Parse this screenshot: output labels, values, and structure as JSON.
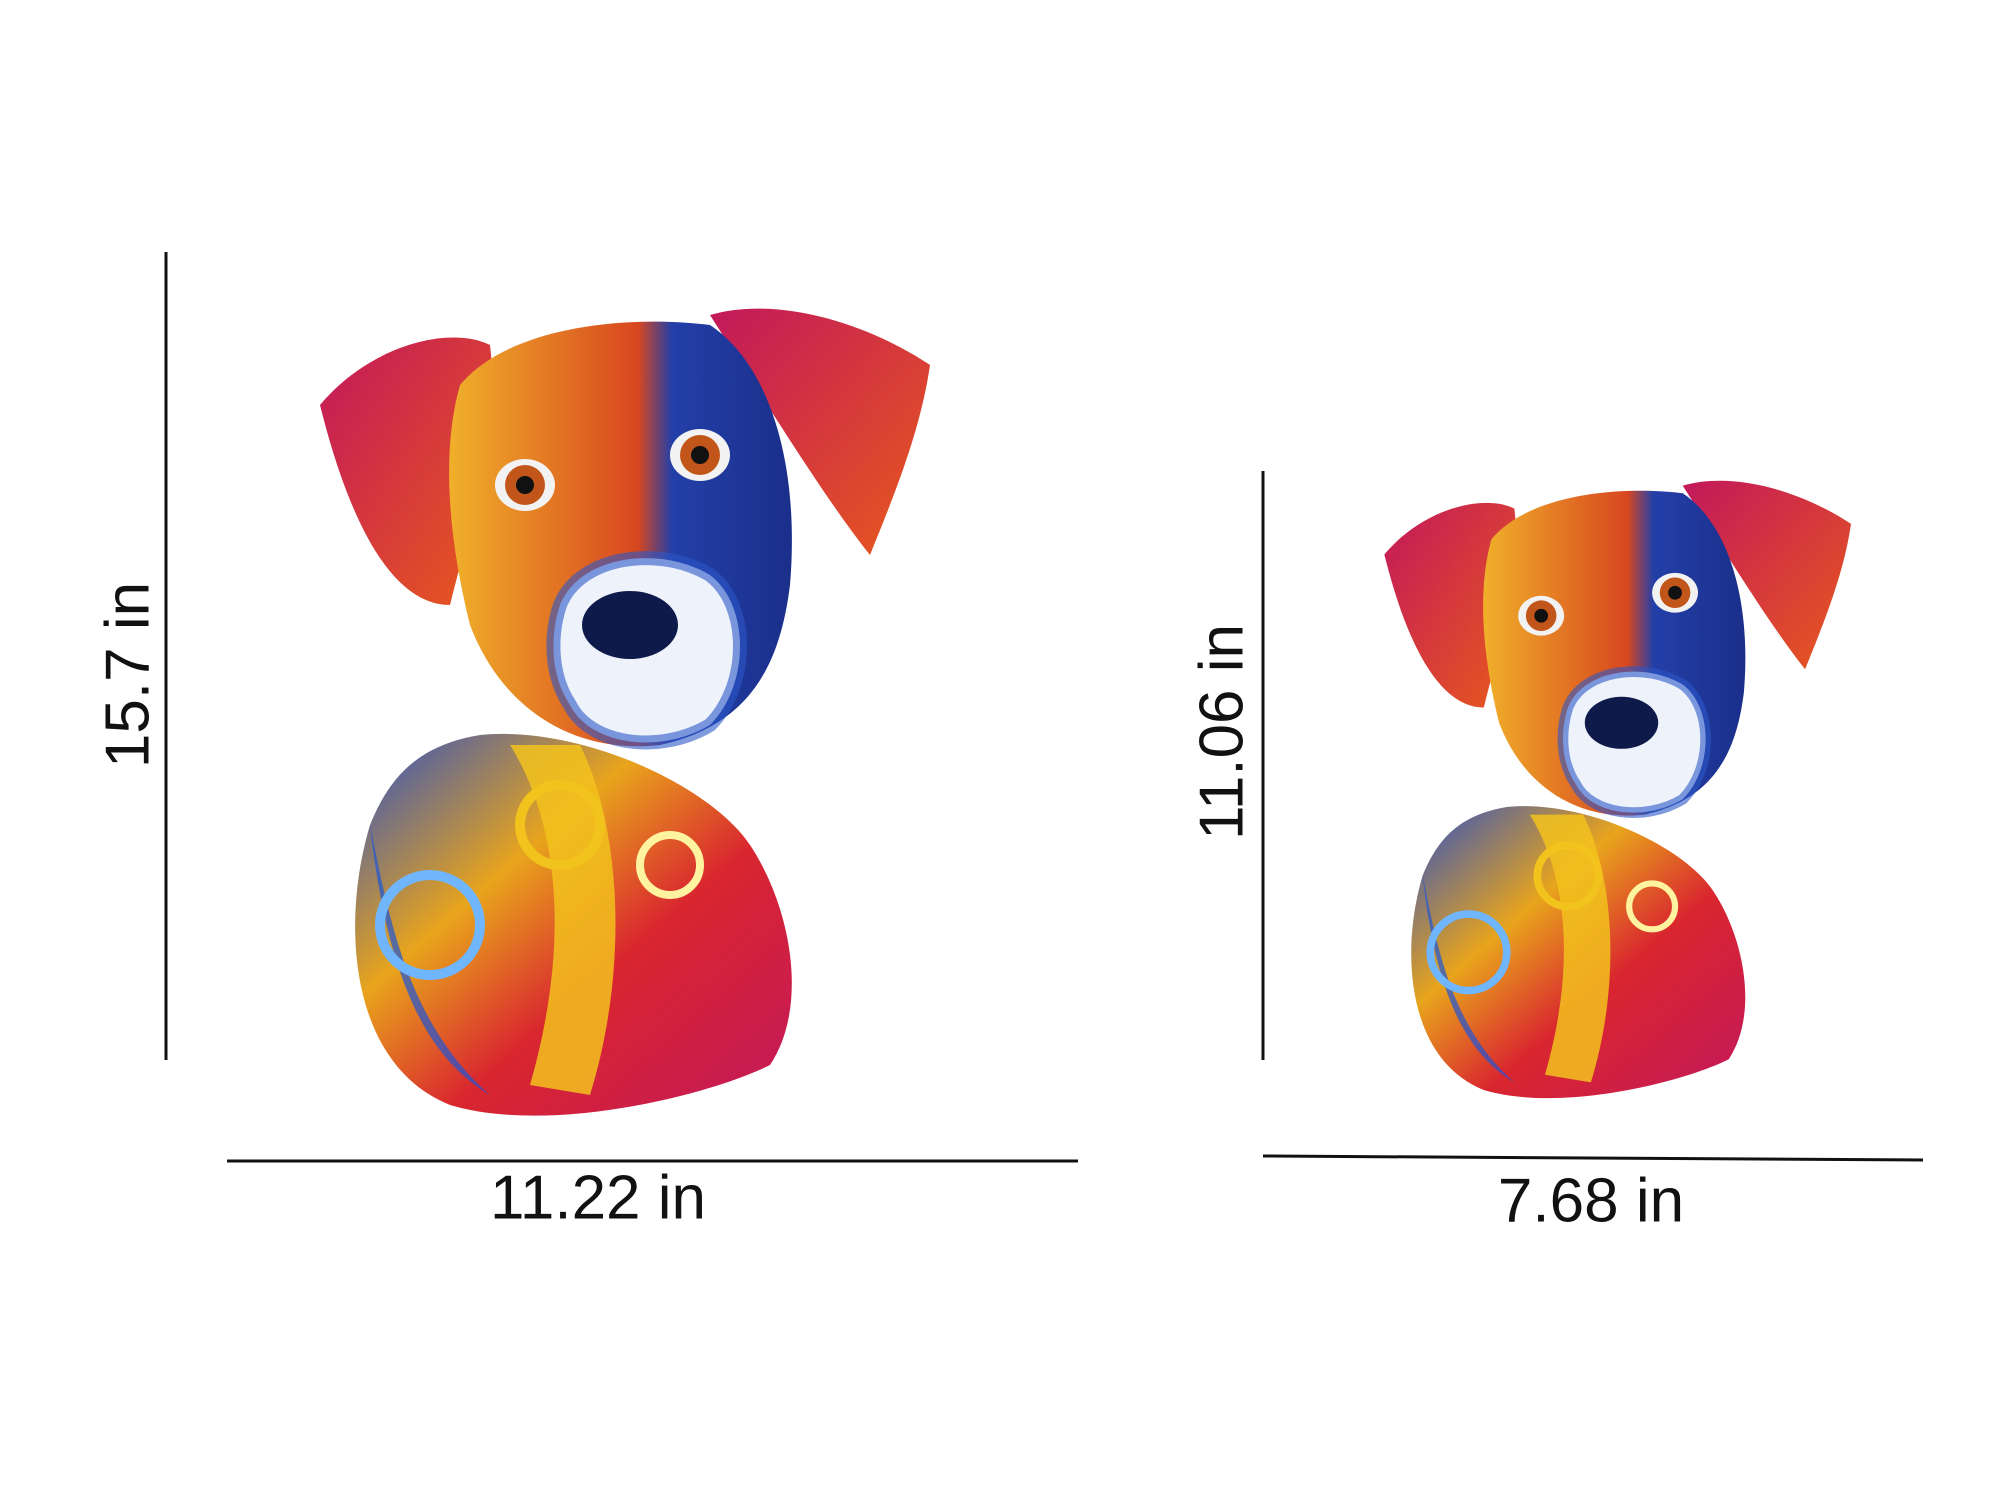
{
  "items": [
    {
      "height_label": "15.7 in",
      "width_label": "11.22 in"
    },
    {
      "height_label": "11.06 in",
      "width_label": "7.68 in"
    }
  ]
}
